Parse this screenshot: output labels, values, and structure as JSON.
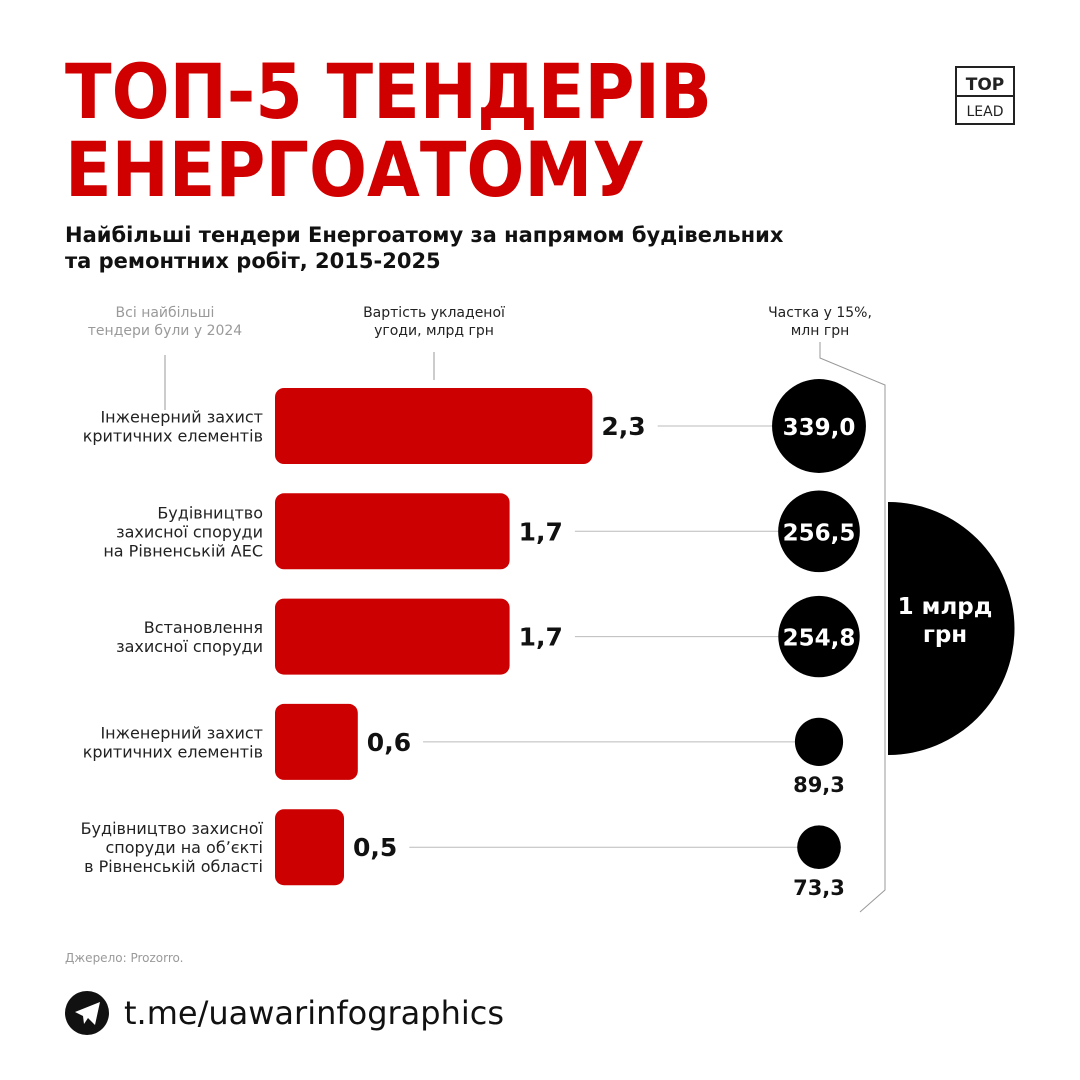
{
  "chart_data": {
    "type": "bar",
    "orientation": "horizontal",
    "title": "ТОП-5 ТЕНДЕРІВ\nЕНЕРГОАТОМУ",
    "subtitle": "Найбільші тендери Енергоатому за напрямом будівельних\nта ремонтних робіт, 2015-2025",
    "annotation": "Всі найбільші\nтендери були у 2024",
    "total_label": "1 млрд\nгрн",
    "source": "Джерело: Prozorro.",
    "link": "t.me/uawarinfographics",
    "logo": {
      "top": "TOP",
      "bottom": "LEAD"
    },
    "categories": [
      "Інженерний захист\nкритичних елементів",
      "Будівництво\nзахисної споруди\nна Рівненській АЕС",
      "Встановлення\nзахисної споруди",
      "Інженерний захист\nкритичних елементів",
      "Будівництво захисної\nспоруди на обʼєкті\nв Рівненській області"
    ],
    "series": [
      {
        "name": "Вартість укладеної\nугоди, млрд грн",
        "color": "#cc0000",
        "values": [
          2.3,
          1.7,
          1.7,
          0.6,
          0.5
        ],
        "value_labels": [
          "2,3",
          "1,7",
          "1,7",
          "0,6",
          "0,5"
        ]
      },
      {
        "name": "Частка у 15%,\nмлн грн",
        "color": "#000000",
        "values": [
          339.0,
          256.5,
          254.8,
          89.3,
          73.3
        ],
        "value_labels": [
          "339,0",
          "256,5",
          "254,8",
          "89,3",
          "73,3"
        ]
      }
    ]
  }
}
